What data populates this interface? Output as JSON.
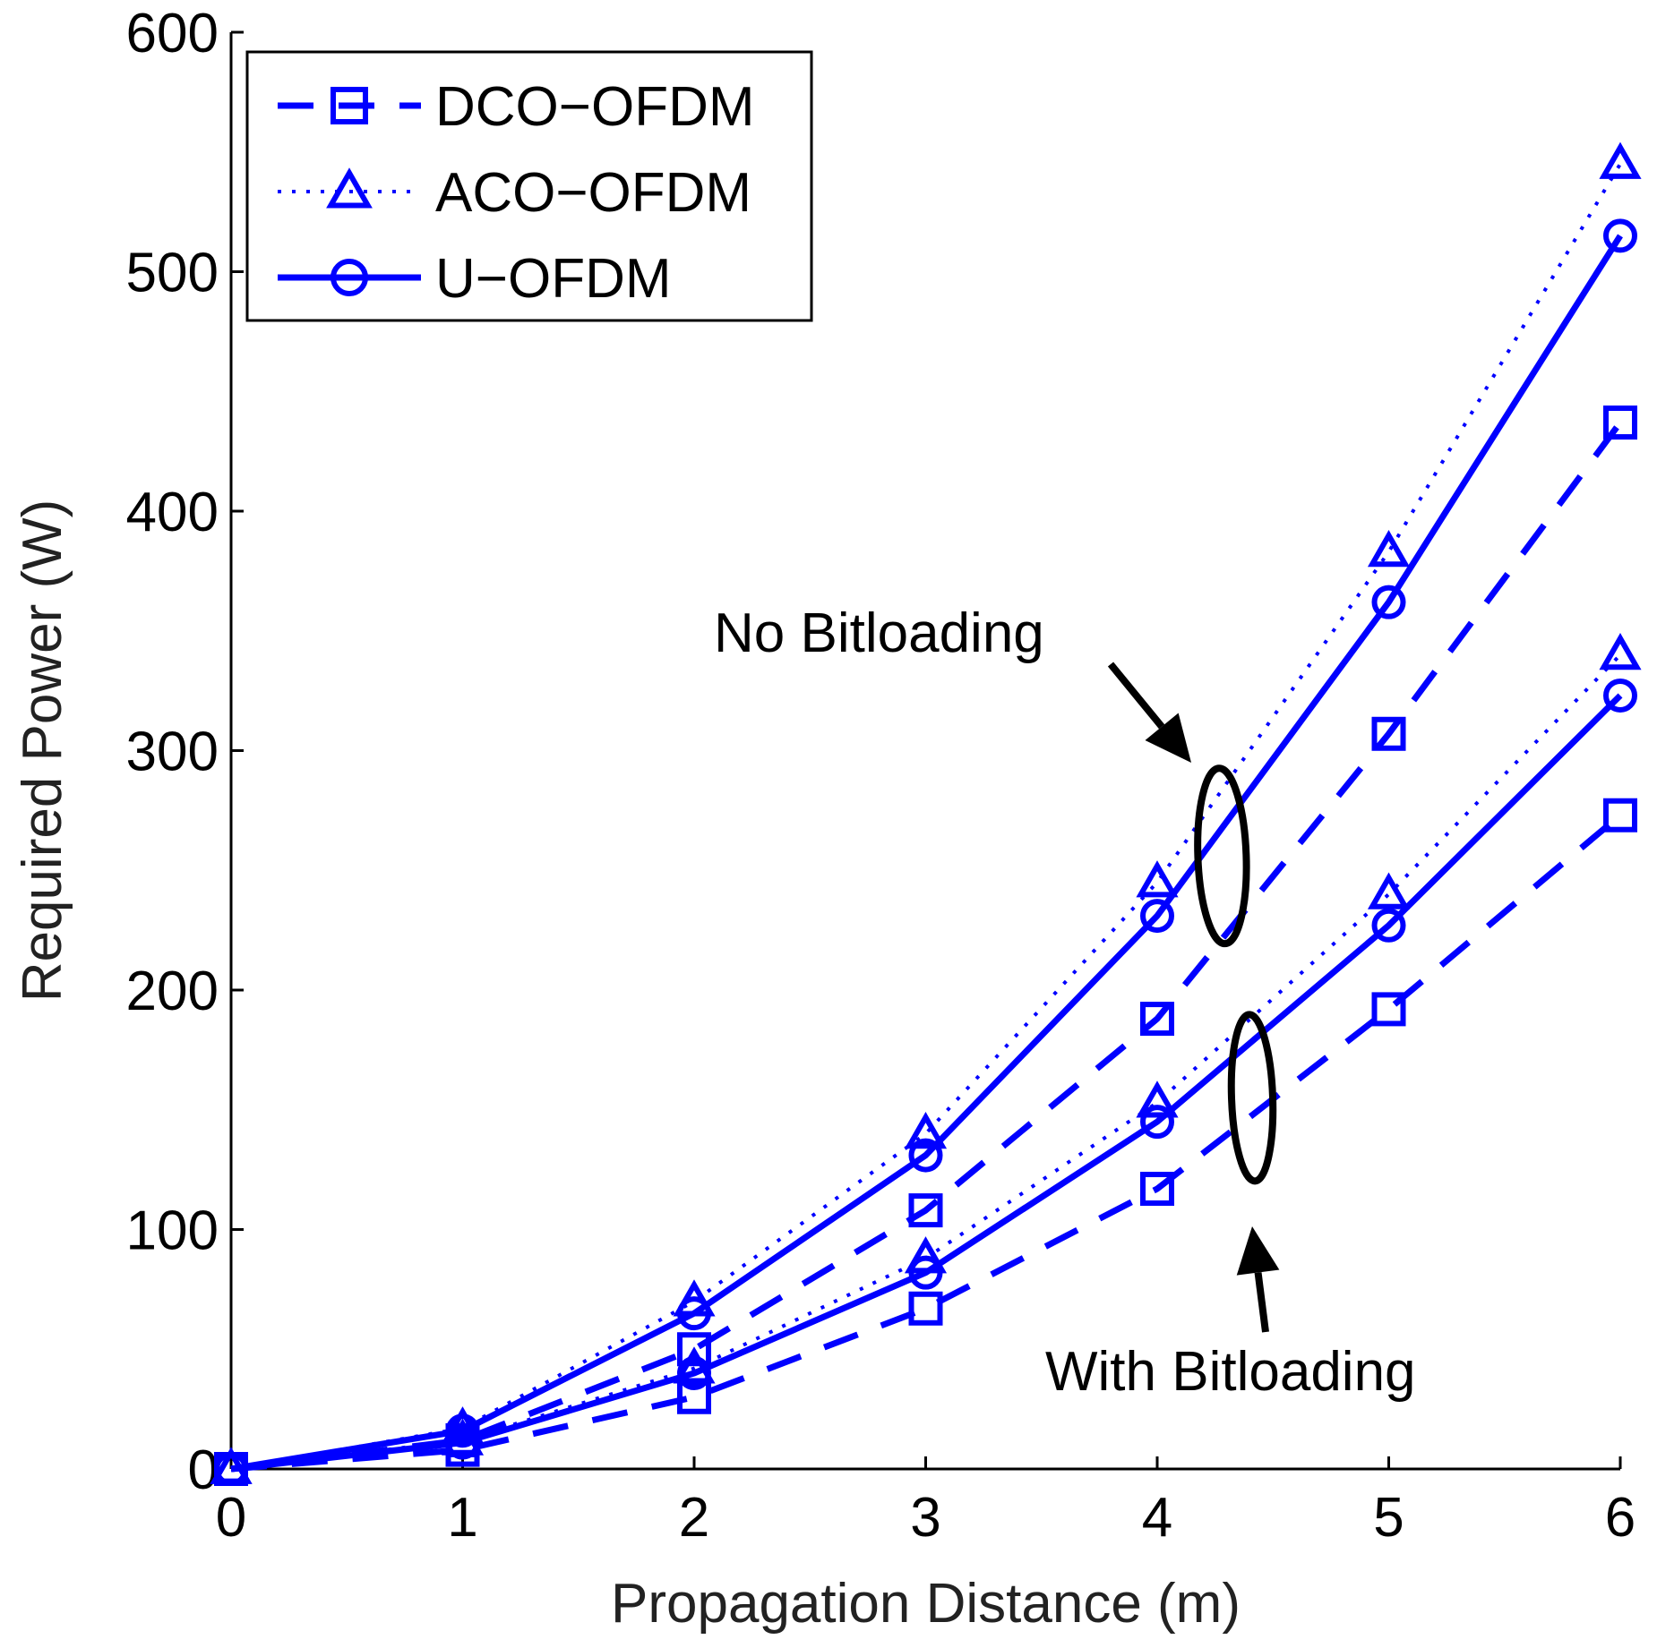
{
  "chart_data": {
    "type": "line",
    "title": "",
    "xlabel": "Propagation Distance (m)",
    "ylabel": "Required Power (W)",
    "xlim": [
      0,
      6
    ],
    "ylim": [
      0,
      600
    ],
    "xticks": [
      0,
      1,
      2,
      3,
      4,
      5,
      6
    ],
    "yticks": [
      0,
      100,
      200,
      300,
      400,
      500,
      600
    ],
    "grid": false,
    "legend_position": "top-left",
    "line_color": "#0000ff",
    "legend": [
      {
        "label": "DCO−OFDM",
        "style": "dashed",
        "marker": "square"
      },
      {
        "label": "ACO−OFDM",
        "style": "dotted",
        "marker": "triangle"
      },
      {
        "label": "U−OFDM",
        "style": "solid",
        "marker": "circle"
      }
    ],
    "x": [
      0,
      1,
      2,
      3,
      4,
      5,
      6
    ],
    "series": [
      {
        "group": "No Bitloading",
        "scheme": "DCO−OFDM",
        "style": "dashed",
        "marker": "square",
        "values": [
          0,
          12,
          50,
          108,
          188,
          307,
          437
        ]
      },
      {
        "group": "No Bitloading",
        "scheme": "ACO−OFDM",
        "style": "dotted",
        "marker": "triangle",
        "values": [
          0,
          17,
          70,
          140,
          245,
          383,
          545
        ]
      },
      {
        "group": "No Bitloading",
        "scheme": "U−OFDM",
        "style": "solid",
        "marker": "circle",
        "values": [
          0,
          16,
          65,
          131,
          231,
          362,
          515
        ]
      },
      {
        "group": "With Bitloading",
        "scheme": "DCO−OFDM",
        "style": "dashed",
        "marker": "square",
        "values": [
          0,
          8,
          30,
          67,
          117,
          192,
          273
        ]
      },
      {
        "group": "With Bitloading",
        "scheme": "ACO−OFDM",
        "style": "dotted",
        "marker": "triangle",
        "values": [
          0,
          12,
          42,
          88,
          153,
          240,
          340
        ]
      },
      {
        "group": "With Bitloading",
        "scheme": "U−OFDM",
        "style": "solid",
        "marker": "circle",
        "values": [
          0,
          11,
          40,
          82,
          145,
          227,
          323
        ]
      }
    ],
    "annotations": [
      {
        "text": "No Bitloading",
        "encircles": "No Bitloading"
      },
      {
        "text": "With Bitloading",
        "encircles": "With Bitloading"
      }
    ]
  }
}
